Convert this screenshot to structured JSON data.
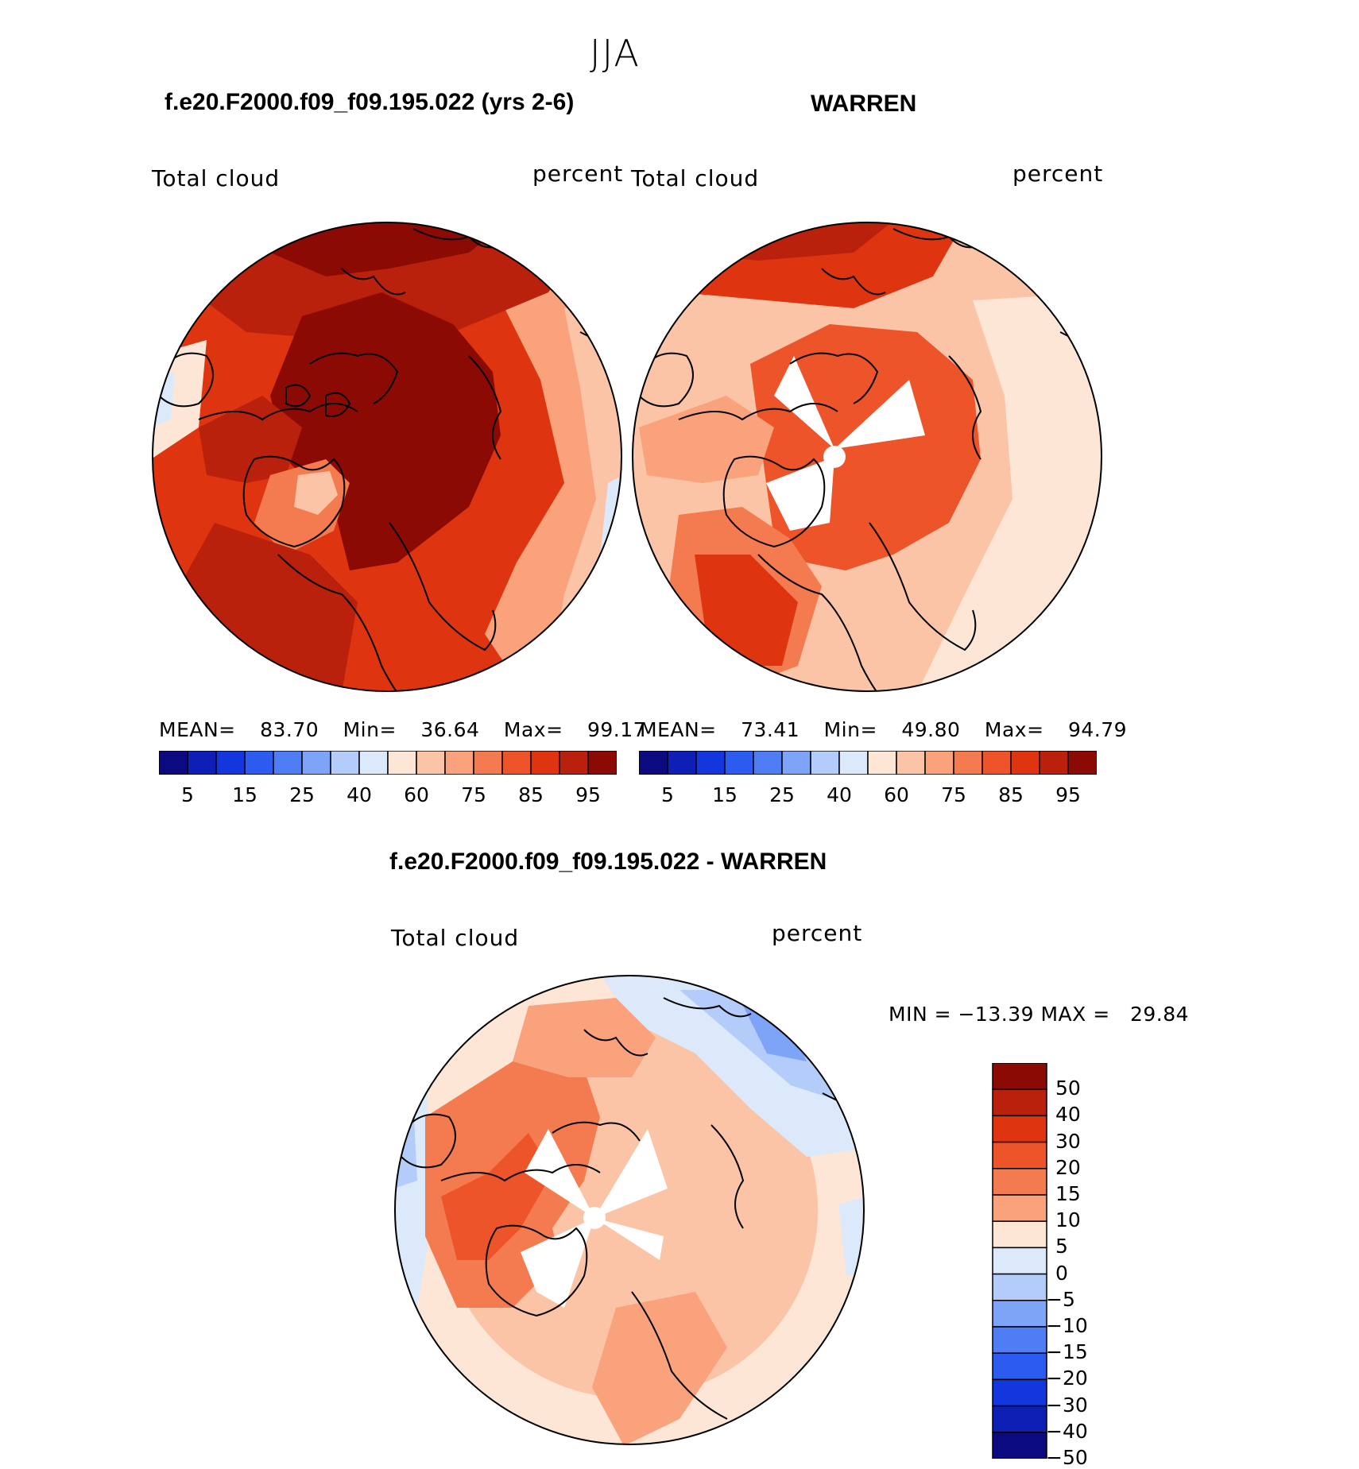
{
  "season_title": "JJA",
  "panels": [
    {
      "case_title": "f.e20.F2000.f09_f09.195.022 (yrs 2-6)",
      "left_label": "Total cloud",
      "right_label": "percent",
      "stats": {
        "mean_label": "MEAN=",
        "mean": "83.70",
        "min_label": "Min=",
        "min": "36.64",
        "max_label": "Max=",
        "max": "99.17"
      }
    },
    {
      "case_title": "WARREN",
      "left_label": "Total cloud",
      "right_label": "percent",
      "stats": {
        "mean_label": "MEAN=",
        "mean": "73.41",
        "min_label": "Min=",
        "min": "49.80",
        "max_label": "Max=",
        "max": "94.79"
      }
    }
  ],
  "top_colorbar": {
    "colors": [
      "#0b0a80",
      "#0d1fb5",
      "#1337de",
      "#2b5bef",
      "#4f7ef4",
      "#7ea4f7",
      "#b3ccf9",
      "#dbe9fb",
      "#fde6d6",
      "#fcc4a6",
      "#f9a27c",
      "#f47b50",
      "#ee5429",
      "#de3510",
      "#b9210c",
      "#8c0a04"
    ],
    "labels": [
      "5",
      "15",
      "25",
      "40",
      "60",
      "75",
      "85",
      "95"
    ]
  },
  "diff": {
    "title": "f.e20.F2000.f09_f09.195.022 - WARREN",
    "left_label": "Total cloud",
    "right_label": "percent",
    "minmax": "MIN = −13.39 MAX =   29.84",
    "colorbar": {
      "colors": [
        "#8c0a04",
        "#b9210c",
        "#de3510",
        "#ee5429",
        "#f47b50",
        "#f9a27c",
        "#fde6d6",
        "#dbe9fb",
        "#b3ccf9",
        "#7ea4f7",
        "#4f7ef4",
        "#2b5bef",
        "#1337de",
        "#0d1fb5",
        "#0b0a80"
      ],
      "labels": [
        "50",
        "40",
        "30",
        "20",
        "15",
        "10",
        "5",
        "0",
        "−5",
        "−10",
        "−15",
        "−20",
        "−30",
        "−40",
        "−50"
      ]
    }
  },
  "map_colors": {
    "darkest": "#8c0a04",
    "dark": "#b9210c",
    "red": "#de3510",
    "orange_red": "#ee5429",
    "orange": "#f47b50",
    "salmon": "#f9a27c",
    "light_salmon": "#fcc4a6",
    "pale": "#fde6d6",
    "light_blue": "#dbe9fb",
    "blue": "#b3ccf9",
    "mid_blue": "#7ea4f7",
    "missing": "#ffffff"
  }
}
